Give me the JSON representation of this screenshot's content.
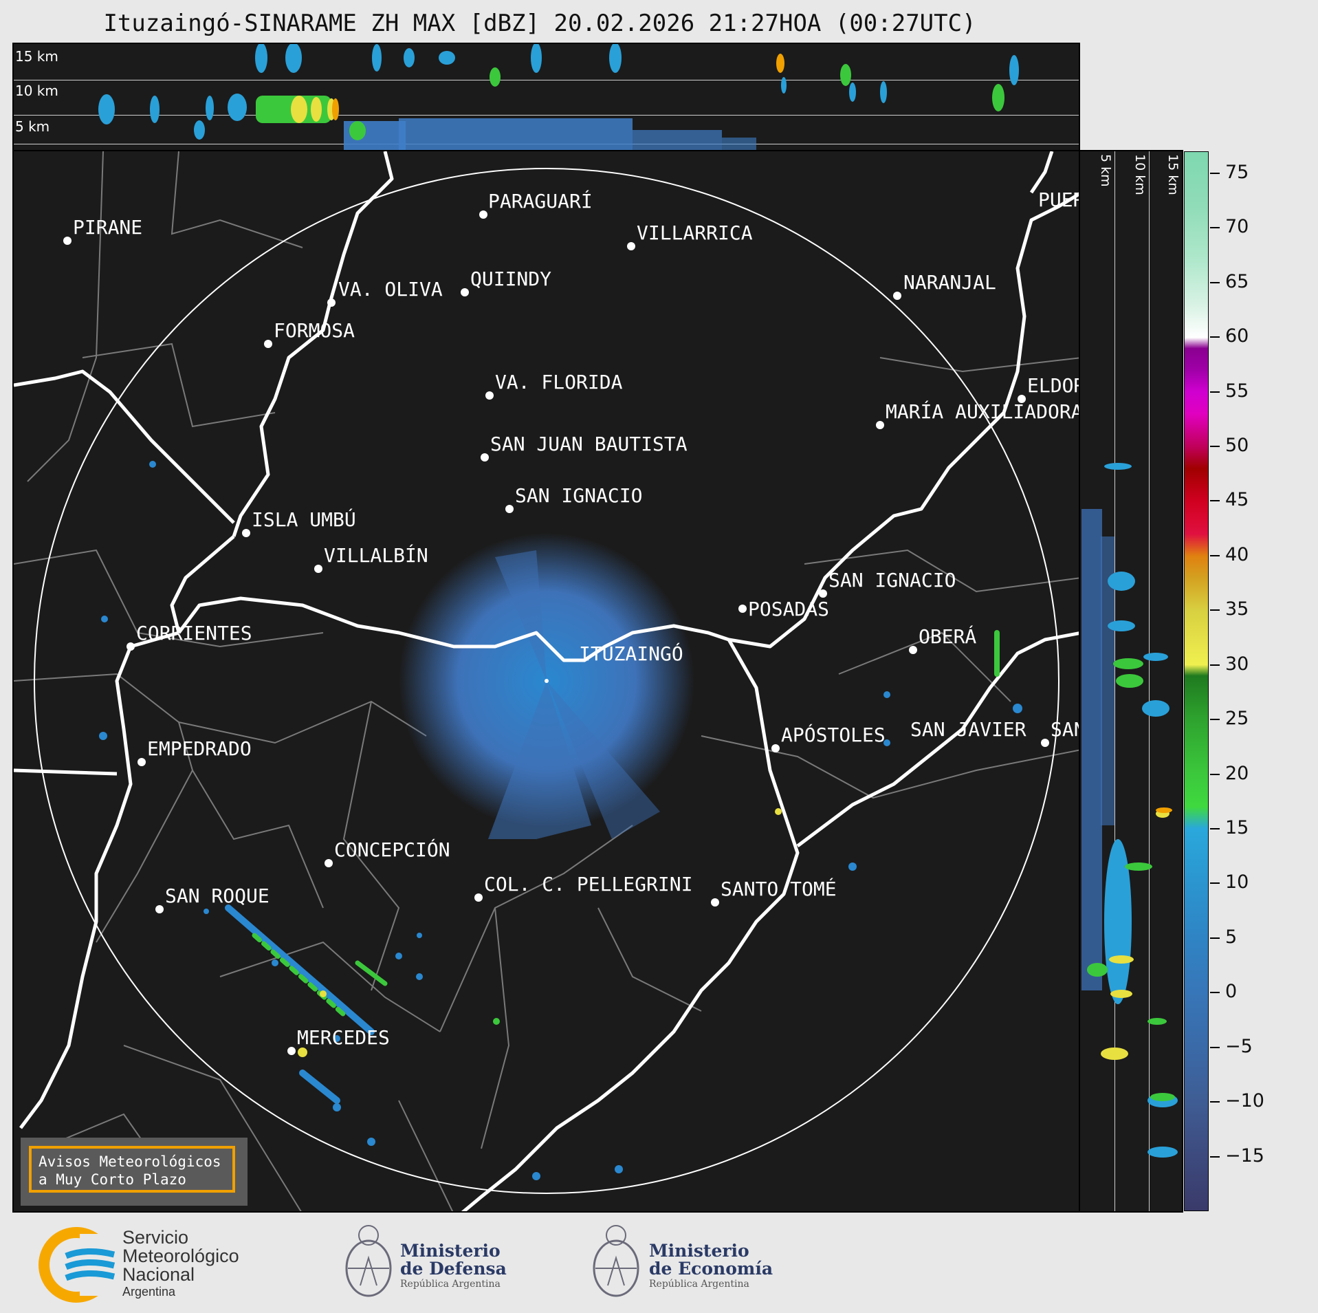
{
  "title": "Ituzaingó-SINARAME ZH MAX [dBZ] 20.02.2026 21:27HOA (00:27UTC)",
  "top_panel": {
    "altitude_labels": [
      "15 km",
      "10 km",
      "5 km"
    ]
  },
  "side_panel": {
    "altitude_labels": [
      "5 km",
      "10 km",
      "15 km"
    ]
  },
  "map": {
    "radar_site": "ITUZAINGÓ",
    "cities": [
      "PIRANE",
      "PARAGUARÍ",
      "VILLARRICA",
      "QUIINDY",
      "VA. OLIVA",
      "FORMOSA",
      "NARANJAL",
      "VA. FLORIDA",
      "ELDORADO",
      "MARÍA AUXILIADORA",
      "SAN JUAN BAUTISTA",
      "SAN IGNACIO",
      "ISLA UMBÚ",
      "VILLALBÍN",
      "SAN IGNACIO",
      "POSADAS",
      "CORRIENTES",
      "ITUZAINGÓ",
      "OBERÁ",
      "EMPEDRADO",
      "APÓSTOLES",
      "SAN JAVIER",
      "SAN",
      "CONCEPCIÓN",
      "COL. C. PELLEGRINI",
      "SANTO TOMÉ",
      "SAN ROQUE",
      "MERCEDES",
      "PUERTO"
    ]
  },
  "colorbar": {
    "unit": "dBZ",
    "tick_labels": [
      "75",
      "70",
      "65",
      "60",
      "55",
      "50",
      "45",
      "40",
      "35",
      "30",
      "25",
      "20",
      "15",
      "10",
      "5",
      "0",
      "−5",
      "−10",
      "−15"
    ],
    "min": -20,
    "max": 77
  },
  "notice": {
    "line1": "Avisos Meteorológicos",
    "line2": "a Muy Corto Plazo"
  },
  "logos": {
    "smn": {
      "line1": "Servicio",
      "line2": "Meteorológico",
      "line3": "Nacional",
      "line4": "Argentina"
    },
    "defensa": {
      "line1": "Ministerio",
      "line2": "de Defensa",
      "line3": "República Argentina"
    },
    "economia": {
      "line1": "Ministerio",
      "line2": "de Economía",
      "line3": "República Argentina"
    }
  },
  "colors": {
    "background": "#1b1b1b",
    "echo_blue": "#3f7ec8",
    "echo_green": "#3cc83c",
    "echo_yellow": "#e8e040",
    "accent_orange": "#f0a000",
    "smn_blue": "#1a9ad6",
    "smn_orange": "#f7a800"
  }
}
